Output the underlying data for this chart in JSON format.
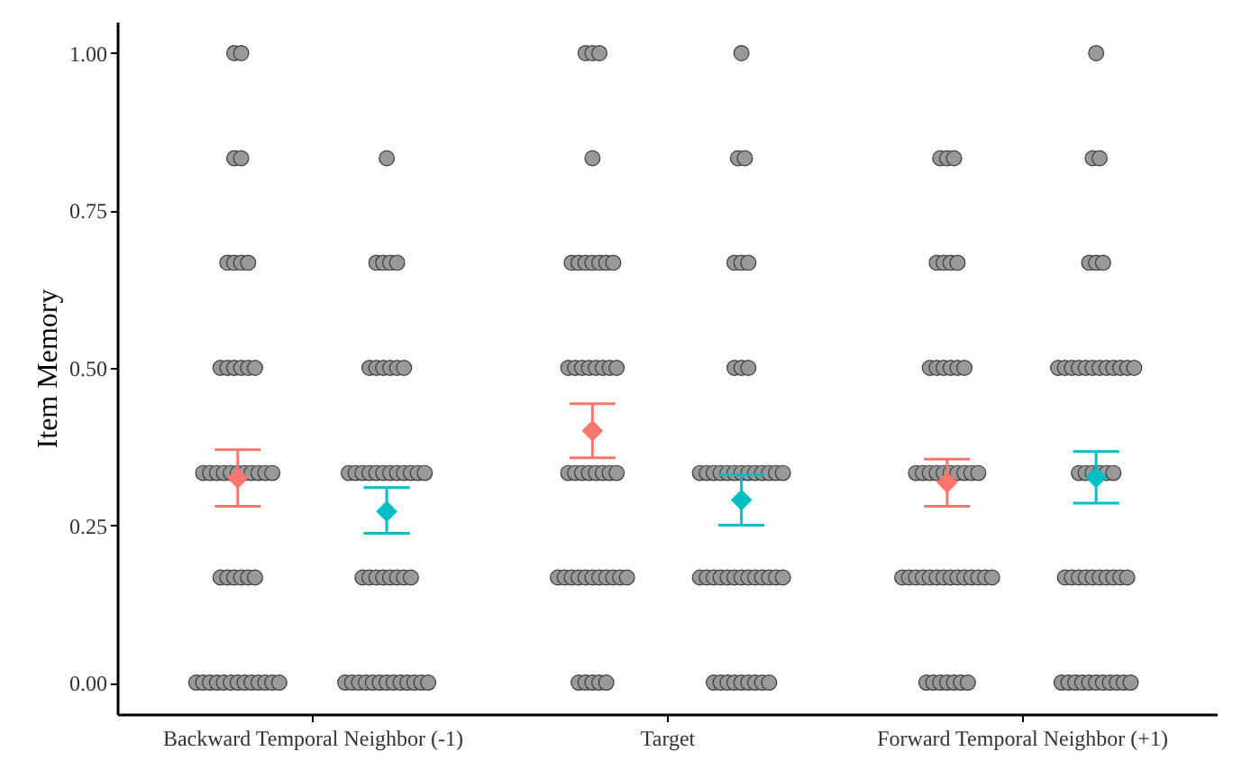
{
  "chart_data": {
    "type": "scatter",
    "ylabel": "Item Memory",
    "categories": [
      "Backward Temporal Neighbor (-1)",
      "Target",
      "Forward Temporal Neighbor (+1)"
    ],
    "ylim": [
      -0.05,
      1.05
    ],
    "yticks": [
      {
        "value": 0,
        "label": "0.00"
      },
      {
        "value": 0.25,
        "label": "0.25"
      },
      {
        "value": 0.5,
        "label": "0.50"
      },
      {
        "value": 0.75,
        "label": "0.75"
      },
      {
        "value": 1,
        "label": "1.00"
      }
    ],
    "grid": false,
    "series": [
      {
        "color": "#999999",
        "marker": "circle",
        "x": [
          "Backward Temporal Neighbor (-1)",
          "Backward Temporal Neighbor (-1)",
          "Backward Temporal Neighbor (-1)",
          "Backward Temporal Neighbor (-1)",
          "Backward Temporal Neighbor (-1)",
          "Backward Temporal Neighbor (-1)",
          "Backward Temporal Neighbor (-1)",
          "Backward Temporal Neighbor (-1)",
          "Backward Temporal Neighbor (-1)",
          "Backward Temporal Neighbor (-1)",
          "Backward Temporal Neighbor (-1)",
          "Backward Temporal Neighbor (-1)",
          "Backward Temporal Neighbor (-1)",
          "Backward Temporal Neighbor (-1)",
          "Backward Temporal Neighbor (-1)",
          "Backward Temporal Neighbor (-1)",
          "Backward Temporal Neighbor (-1)",
          "Backward Temporal Neighbor (-1)",
          "Backward Temporal Neighbor (-1)",
          "Backward Temporal Neighbor (-1)",
          "Backward Temporal Neighbor (-1)",
          "Backward Temporal Neighbor (-1)",
          "Backward Temporal Neighbor (-1)",
          "Backward Temporal Neighbor (-1)",
          "Backward Temporal Neighbor (-1)",
          "Backward Temporal Neighbor (-1)",
          "Backward Temporal Neighbor (-1)",
          "Backward Temporal Neighbor (-1)",
          "Backward Temporal Neighbor (-1)",
          "Backward Temporal Neighbor (-1)",
          "Backward Temporal Neighbor (-1)",
          "Backward Temporal Neighbor (-1)",
          "Backward Temporal Neighbor (-1)",
          "Backward Temporal Neighbor (-1)",
          "Backward Temporal Neighbor (-1)",
          "Backward Temporal Neighbor (-1)",
          "Backward Temporal Neighbor (-1)",
          "Backward Temporal Neighbor (-1)",
          "Backward Temporal Neighbor (-1)",
          "Backward Temporal Neighbor (-1)",
          "Backward Temporal Neighbor (-1)",
          "Backward Temporal Neighbor (-1)",
          "Backward Temporal Neighbor (-1)",
          "Backward Temporal Neighbor (-1)",
          "Target",
          "Target",
          "Target",
          "Target",
          "Target",
          "Target",
          "Target",
          "Target",
          "Target",
          "Target",
          "Target",
          "Target",
          "Target",
          "Target",
          "Target",
          "Target",
          "Target",
          "Target",
          "Target",
          "Target",
          "Target",
          "Target",
          "Target",
          "Target",
          "Target",
          "Target",
          "Target",
          "Target",
          "Target",
          "Target",
          "Target",
          "Target",
          "Target",
          "Target",
          "Target",
          "Target",
          "Target",
          "Target",
          "Target",
          "Target",
          "Target",
          "Target",
          "Target",
          "Forward Temporal Neighbor (+1)",
          "Forward Temporal Neighbor (+1)",
          "Forward Temporal Neighbor (+1)",
          "Forward Temporal Neighbor (+1)",
          "Forward Temporal Neighbor (+1)",
          "Forward Temporal Neighbor (+1)",
          "Forward Temporal Neighbor (+1)",
          "Forward Temporal Neighbor (+1)",
          "Forward Temporal Neighbor (+1)",
          "Forward Temporal Neighbor (+1)",
          "Forward Temporal Neighbor (+1)",
          "Forward Temporal Neighbor (+1)",
          "Forward Temporal Neighbor (+1)",
          "Forward Temporal Neighbor (+1)",
          "Forward Temporal Neighbor (+1)",
          "Forward Temporal Neighbor (+1)",
          "Forward Temporal Neighbor (+1)",
          "Forward Temporal Neighbor (+1)",
          "Forward Temporal Neighbor (+1)",
          "Forward Temporal Neighbor (+1)",
          "Forward Temporal Neighbor (+1)",
          "Forward Temporal Neighbor (+1)",
          "Forward Temporal Neighbor (+1)",
          "Forward Temporal Neighbor (+1)",
          "Forward Temporal Neighbor (+1)",
          "Forward Temporal Neighbor (+1)",
          "Forward Temporal Neighbor (+1)",
          "Forward Temporal Neighbor (+1)",
          "Forward Temporal Neighbor (+1)",
          "Forward Temporal Neighbor (+1)",
          "Forward Temporal Neighbor (+1)",
          "Forward Temporal Neighbor (+1)",
          "Forward Temporal Neighbor (+1)",
          "Forward Temporal Neighbor (+1)",
          "Forward Temporal Neighbor (+1)",
          "Forward Temporal Neighbor (+1)",
          "Forward Temporal Neighbor (+1)",
          "Forward Temporal Neighbor (+1)",
          "Forward Temporal Neighbor (+1)",
          "Forward Temporal Neighbor (+1)",
          "Forward Temporal Neighbor (+1)",
          "Forward Temporal Neighbor (+1)",
          "Forward Temporal Neighbor (+1)",
          "Forward Temporal Neighbor (+1)"
        ],
        "values": [
          1,
          1,
          0.833,
          0.833,
          0.667,
          0.667,
          0.667,
          0.667,
          0.5,
          0.5,
          0.5,
          0.5,
          0.5,
          0.5,
          0.333,
          0.333,
          0.333,
          0.333,
          0.333,
          0.333,
          0.333,
          0.333,
          0.333,
          0.333,
          0.333,
          0.167,
          0.167,
          0.167,
          0.167,
          0.167,
          0.167,
          0,
          0,
          0,
          0,
          0,
          0,
          0,
          0,
          0,
          0,
          0,
          0,
          0,
          1,
          1,
          1,
          0.833,
          0.667,
          0.667,
          0.667,
          0.667,
          0.667,
          0.667,
          0.667,
          0.5,
          0.5,
          0.5,
          0.5,
          0.5,
          0.5,
          0.5,
          0.5,
          0.333,
          0.333,
          0.333,
          0.333,
          0.333,
          0.333,
          0.333,
          0.333,
          0.167,
          0.167,
          0.167,
          0.167,
          0.167,
          0.167,
          0.167,
          0.167,
          0.167,
          0.167,
          0.167,
          0,
          0,
          0,
          0,
          0,
          0.833,
          0.833,
          0.833,
          0.667,
          0.667,
          0.667,
          0.667,
          0.5,
          0.5,
          0.5,
          0.5,
          0.5,
          0.5,
          0.333,
          0.333,
          0.333,
          0.333,
          0.333,
          0.333,
          0.333,
          0.333,
          0.333,
          0.333,
          0.167,
          0.167,
          0.167,
          0.167,
          0.167,
          0.167,
          0.167,
          0.167,
          0.167,
          0.167,
          0.167,
          0.167,
          0.167,
          0.167,
          0,
          0,
          0,
          0,
          0,
          0,
          0
        ]
      },
      {
        "color": "#999999",
        "marker": "circle",
        "x": [
          "Backward Temporal Neighbor (-1)",
          "Backward Temporal Neighbor (-1)",
          "Backward Temporal Neighbor (-1)",
          "Backward Temporal Neighbor (-1)",
          "Backward Temporal Neighbor (-1)",
          "Backward Temporal Neighbor (-1)",
          "Backward Temporal Neighbor (-1)",
          "Backward Temporal Neighbor (-1)",
          "Backward Temporal Neighbor (-1)",
          "Backward Temporal Neighbor (-1)",
          "Backward Temporal Neighbor (-1)",
          "Backward Temporal Neighbor (-1)",
          "Backward Temporal Neighbor (-1)",
          "Backward Temporal Neighbor (-1)",
          "Backward Temporal Neighbor (-1)",
          "Backward Temporal Neighbor (-1)",
          "Backward Temporal Neighbor (-1)",
          "Backward Temporal Neighbor (-1)",
          "Backward Temporal Neighbor (-1)",
          "Backward Temporal Neighbor (-1)",
          "Backward Temporal Neighbor (-1)",
          "Backward Temporal Neighbor (-1)",
          "Backward Temporal Neighbor (-1)",
          "Backward Temporal Neighbor (-1)",
          "Backward Temporal Neighbor (-1)",
          "Backward Temporal Neighbor (-1)",
          "Backward Temporal Neighbor (-1)",
          "Backward Temporal Neighbor (-1)",
          "Backward Temporal Neighbor (-1)",
          "Backward Temporal Neighbor (-1)",
          "Backward Temporal Neighbor (-1)",
          "Backward Temporal Neighbor (-1)",
          "Backward Temporal Neighbor (-1)",
          "Backward Temporal Neighbor (-1)",
          "Backward Temporal Neighbor (-1)",
          "Backward Temporal Neighbor (-1)",
          "Backward Temporal Neighbor (-1)",
          "Backward Temporal Neighbor (-1)",
          "Backward Temporal Neighbor (-1)",
          "Backward Temporal Neighbor (-1)",
          "Backward Temporal Neighbor (-1)",
          "Backward Temporal Neighbor (-1)",
          "Backward Temporal Neighbor (-1)",
          "Backward Temporal Neighbor (-1)",
          "Target",
          "Target",
          "Target",
          "Target",
          "Target",
          "Target",
          "Target",
          "Target",
          "Target",
          "Target",
          "Target",
          "Target",
          "Target",
          "Target",
          "Target",
          "Target",
          "Target",
          "Target",
          "Target",
          "Target",
          "Target",
          "Target",
          "Target",
          "Target",
          "Target",
          "Target",
          "Target",
          "Target",
          "Target",
          "Target",
          "Target",
          "Target",
          "Target",
          "Target",
          "Target",
          "Target",
          "Target",
          "Target",
          "Target",
          "Target",
          "Target",
          "Target",
          "Target",
          "Target",
          "Forward Temporal Neighbor (+1)",
          "Forward Temporal Neighbor (+1)",
          "Forward Temporal Neighbor (+1)",
          "Forward Temporal Neighbor (+1)",
          "Forward Temporal Neighbor (+1)",
          "Forward Temporal Neighbor (+1)",
          "Forward Temporal Neighbor (+1)",
          "Forward Temporal Neighbor (+1)",
          "Forward Temporal Neighbor (+1)",
          "Forward Temporal Neighbor (+1)",
          "Forward Temporal Neighbor (+1)",
          "Forward Temporal Neighbor (+1)",
          "Forward Temporal Neighbor (+1)",
          "Forward Temporal Neighbor (+1)",
          "Forward Temporal Neighbor (+1)",
          "Forward Temporal Neighbor (+1)",
          "Forward Temporal Neighbor (+1)",
          "Forward Temporal Neighbor (+1)",
          "Forward Temporal Neighbor (+1)",
          "Forward Temporal Neighbor (+1)",
          "Forward Temporal Neighbor (+1)",
          "Forward Temporal Neighbor (+1)",
          "Forward Temporal Neighbor (+1)",
          "Forward Temporal Neighbor (+1)",
          "Forward Temporal Neighbor (+1)",
          "Forward Temporal Neighbor (+1)",
          "Forward Temporal Neighbor (+1)",
          "Forward Temporal Neighbor (+1)",
          "Forward Temporal Neighbor (+1)",
          "Forward Temporal Neighbor (+1)",
          "Forward Temporal Neighbor (+1)",
          "Forward Temporal Neighbor (+1)",
          "Forward Temporal Neighbor (+1)",
          "Forward Temporal Neighbor (+1)",
          "Forward Temporal Neighbor (+1)",
          "Forward Temporal Neighbor (+1)",
          "Forward Temporal Neighbor (+1)",
          "Forward Temporal Neighbor (+1)",
          "Forward Temporal Neighbor (+1)",
          "Forward Temporal Neighbor (+1)",
          "Forward Temporal Neighbor (+1)",
          "Forward Temporal Neighbor (+1)",
          "Forward Temporal Neighbor (+1)",
          "Forward Temporal Neighbor (+1)",
          "Forward Temporal Neighbor (+1)"
        ],
        "values": [
          0.833,
          0.667,
          0.667,
          0.667,
          0.667,
          0.5,
          0.5,
          0.5,
          0.5,
          0.5,
          0.5,
          0.333,
          0.333,
          0.333,
          0.333,
          0.333,
          0.333,
          0.333,
          0.333,
          0.333,
          0.333,
          0.333,
          0.333,
          0.167,
          0.167,
          0.167,
          0.167,
          0.167,
          0.167,
          0.167,
          0.167,
          0,
          0,
          0,
          0,
          0,
          0,
          0,
          0,
          0,
          0,
          0,
          0,
          0,
          1,
          0.833,
          0.833,
          0.667,
          0.667,
          0.667,
          0.5,
          0.5,
          0.5,
          0.333,
          0.333,
          0.333,
          0.333,
          0.333,
          0.333,
          0.333,
          0.333,
          0.333,
          0.333,
          0.333,
          0.333,
          0.333,
          0.167,
          0.167,
          0.167,
          0.167,
          0.167,
          0.167,
          0.167,
          0.167,
          0.167,
          0.167,
          0.167,
          0.167,
          0.167,
          0,
          0,
          0,
          0,
          0,
          0,
          0,
          0,
          0,
          1,
          0.833,
          0.833,
          0.667,
          0.667,
          0.667,
          0.5,
          0.5,
          0.5,
          0.5,
          0.5,
          0.5,
          0.5,
          0.5,
          0.5,
          0.5,
          0.5,
          0.5,
          0.333,
          0.333,
          0.333,
          0.333,
          0.333,
          0.333,
          0.167,
          0.167,
          0.167,
          0.167,
          0.167,
          0.167,
          0.167,
          0.167,
          0.167,
          0.167,
          0,
          0,
          0,
          0,
          0,
          0,
          0,
          0,
          0,
          0,
          0
        ]
      },
      {
        "color": "#f8766d",
        "marker": "diamond",
        "x": [
          "Backward Temporal Neighbor (-1)",
          "Target",
          "Forward Temporal Neighbor (+1)"
        ],
        "values": [
          0.325,
          0.4,
          0.318
        ],
        "errors": [
          [
            0.28,
            0.37
          ],
          [
            0.357,
            0.443
          ],
          [
            0.28,
            0.355
          ]
        ]
      },
      {
        "color": "#00bfc4",
        "marker": "diamond",
        "x": [
          "Backward Temporal Neighbor (-1)",
          "Target",
          "Forward Temporal Neighbor (+1)"
        ],
        "values": [
          0.272,
          0.29,
          0.326
        ],
        "errors": [
          [
            0.237,
            0.31
          ],
          [
            0.25,
            0.33
          ],
          [
            0.285,
            0.367
          ]
        ]
      }
    ]
  }
}
